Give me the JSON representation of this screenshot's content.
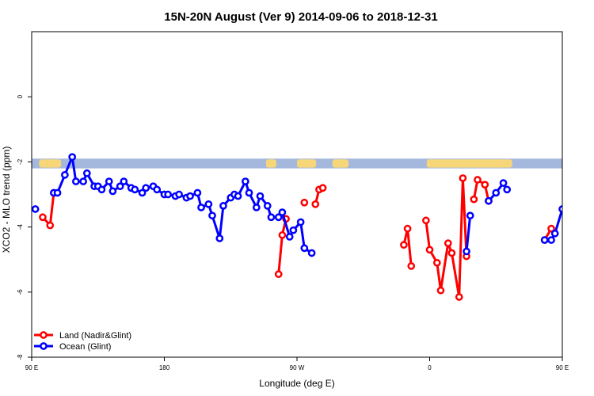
{
  "chart_data": {
    "type": "line",
    "title": "15N-20N August (Ver 9)   2014-09-06 to 2018-12-31",
    "xlabel": "Longitude (deg E)",
    "ylabel": "XCO2 - MLO trend (ppm)",
    "xlim": [
      90,
      450
    ],
    "ylim": [
      -8,
      2
    ],
    "x_ticks": [
      {
        "value": 90,
        "label": "90 E"
      },
      {
        "value": 180,
        "label": "180"
      },
      {
        "value": 270,
        "label": "90 W"
      },
      {
        "value": 360,
        "label": "0"
      },
      {
        "value": 450,
        "label": "90 E"
      },
      {
        "value": 540,
        "label": "180"
      }
    ],
    "y_ticks": [
      {
        "value": 0,
        "label": "0"
      },
      {
        "value": -2,
        "label": "-2"
      },
      {
        "value": -4,
        "label": "-4"
      },
      {
        "value": -6,
        "label": "-6"
      },
      {
        "value": -8,
        "label": "-8"
      }
    ],
    "land_band": {
      "y_low": -2.2,
      "y_high": -1.9,
      "ocean_color": "#a3b8dc",
      "land_color": "#f7d67a",
      "land_segments": [
        [
          95,
          110
        ],
        [
          249,
          256
        ],
        [
          270,
          283
        ],
        [
          294,
          305
        ],
        [
          358,
          416
        ],
        [
          466,
          480
        ],
        [
          500,
          510
        ],
        [
          527,
          545
        ]
      ]
    },
    "legend_placement": "bottom-left",
    "series": [
      {
        "name": "Land (Nadir&Glint)",
        "color": "#ff0000",
        "points": [
          [
            97.5,
            -3.7
          ],
          [
            102.5,
            -3.95
          ],
          [
            105,
            -2.95
          ],
          null,
          [
            257.5,
            -5.45
          ],
          [
            260,
            -4.25
          ],
          [
            262.5,
            -3.75
          ],
          null,
          [
            275,
            -3.25
          ],
          null,
          [
            282.5,
            -3.3
          ],
          [
            285,
            -2.85
          ],
          [
            287.5,
            -2.8
          ],
          null,
          [
            342.5,
            -4.55
          ],
          [
            345,
            -4.05
          ],
          [
            347.5,
            -5.2
          ],
          null,
          [
            357.5,
            -3.8
          ],
          [
            360,
            -4.7
          ],
          [
            365,
            -5.1
          ],
          [
            367.5,
            -5.95
          ],
          [
            372.5,
            -4.5
          ],
          [
            375,
            -4.8
          ],
          [
            380,
            -6.15
          ],
          [
            382.5,
            -2.5
          ],
          [
            385,
            -4.9
          ],
          null,
          [
            390,
            -3.15
          ],
          [
            392.5,
            -2.55
          ],
          [
            397.5,
            -2.7
          ],
          [
            400,
            -3.2
          ],
          null,
          [
            438,
            -4.4
          ],
          [
            442.5,
            -4.05
          ],
          null,
          [
            458,
            -3.7
          ],
          [
            460,
            -3.95
          ],
          [
            462.5,
            -3.0
          ]
        ]
      },
      {
        "name": "Ocean (Glint)",
        "color": "#0000ff",
        "points": [
          [
            92.5,
            -3.45
          ],
          null,
          [
            105,
            -2.95
          ],
          [
            107.5,
            -2.95
          ],
          [
            112.5,
            -2.4
          ],
          [
            117.5,
            -1.85
          ],
          [
            120,
            -2.6
          ],
          [
            125,
            -2.6
          ],
          [
            127.5,
            -2.35
          ],
          [
            132.5,
            -2.75
          ],
          [
            135,
            -2.75
          ],
          [
            137.5,
            -2.85
          ],
          [
            142.5,
            -2.6
          ],
          [
            145,
            -2.9
          ],
          [
            150,
            -2.75
          ],
          [
            152.5,
            -2.6
          ],
          [
            157.5,
            -2.8
          ],
          [
            160,
            -2.85
          ],
          [
            165,
            -2.95
          ],
          [
            167.5,
            -2.8
          ],
          [
            172.5,
            -2.75
          ],
          [
            175,
            -2.85
          ],
          [
            180,
            -3.0
          ],
          [
            182.5,
            -3.0
          ],
          [
            187.5,
            -3.05
          ],
          [
            190,
            -3.0
          ],
          [
            195,
            -3.1
          ],
          [
            197.5,
            -3.05
          ],
          [
            202.5,
            -2.95
          ],
          [
            205,
            -3.4
          ],
          [
            210,
            -3.3
          ],
          [
            212.5,
            -3.65
          ],
          [
            217.5,
            -4.35
          ],
          [
            220,
            -3.35
          ],
          [
            225,
            -3.1
          ],
          [
            227.5,
            -3.0
          ],
          [
            230,
            -3.05
          ],
          [
            235,
            -2.6
          ],
          [
            237.5,
            -2.95
          ],
          [
            242.5,
            -3.4
          ],
          [
            245,
            -3.05
          ],
          [
            250,
            -3.35
          ],
          [
            252.5,
            -3.7
          ],
          [
            257.5,
            -3.7
          ],
          [
            260,
            -3.55
          ],
          [
            265,
            -4.3
          ],
          [
            267.5,
            -4.1
          ],
          [
            272.5,
            -3.85
          ],
          [
            275,
            -4.65
          ],
          [
            280,
            -4.8
          ],
          null,
          [
            385,
            -4.75
          ],
          [
            387.5,
            -3.65
          ],
          null,
          [
            400,
            -3.2
          ],
          [
            405,
            -2.95
          ],
          [
            410,
            -2.65
          ],
          [
            412.5,
            -2.85
          ],
          null,
          [
            438,
            -4.4
          ],
          [
            442.5,
            -4.4
          ],
          [
            445,
            -4.2
          ],
          [
            450,
            -3.45
          ],
          null,
          [
            462.5,
            -2.95
          ],
          [
            467.5,
            -2.95
          ],
          [
            470,
            -2.4
          ],
          [
            475,
            -1.85
          ],
          [
            477.5,
            -2.6
          ],
          [
            482.5,
            -2.6
          ],
          [
            485,
            -2.35
          ],
          [
            490,
            -2.75
          ],
          [
            492.5,
            -2.75
          ],
          [
            495,
            -2.85
          ],
          [
            500,
            -2.6
          ],
          [
            502.5,
            -2.9
          ],
          [
            507.5,
            -2.75
          ],
          [
            510,
            -2.6
          ],
          [
            515,
            -2.8
          ],
          [
            517.5,
            -2.85
          ]
        ]
      }
    ]
  }
}
